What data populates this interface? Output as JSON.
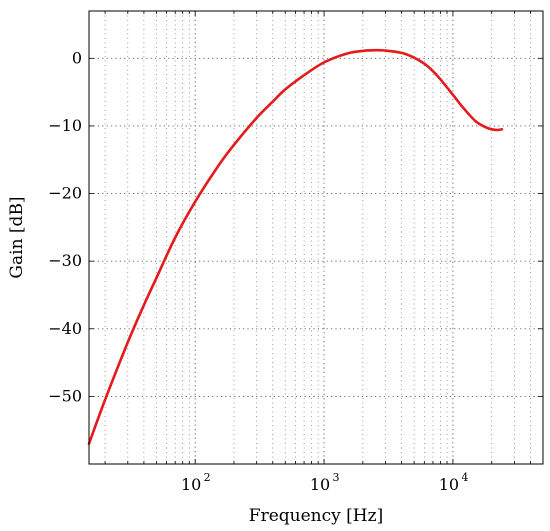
{
  "chart_data": {
    "type": "line",
    "title": "",
    "xlabel": "Frequency [Hz]",
    "ylabel": "Gain [dB]",
    "xscale": "log",
    "xlim": [
      15,
      50000
    ],
    "ylim": [
      -60,
      7
    ],
    "grid": true,
    "x_ticks": [
      100,
      1000,
      10000
    ],
    "x_tick_labels": [
      {
        "base": "10",
        "exp": "2"
      },
      {
        "base": "10",
        "exp": "3"
      },
      {
        "base": "10",
        "exp": "4"
      }
    ],
    "y_ticks": [
      0,
      -10,
      -20,
      -30,
      -40,
      -50
    ],
    "y_tick_labels": [
      "0",
      "−10",
      "−20",
      "−30",
      "−40",
      "−50"
    ],
    "series": [
      {
        "color": "#e41a1c",
        "x": [
          15,
          20,
          30,
          40,
          50,
          70,
          100,
          150,
          200,
          300,
          400,
          500,
          700,
          1000,
          1500,
          2000,
          2500,
          3000,
          4000,
          5000,
          6000,
          7000,
          8000,
          10000,
          12000,
          15000,
          18000,
          20000,
          22000,
          24000
        ],
        "y": [
          -57,
          -50.5,
          -42,
          -36.5,
          -32.5,
          -26.5,
          -21.2,
          -16,
          -12.8,
          -8.8,
          -6.4,
          -4.6,
          -2.5,
          -0.6,
          0.7,
          1.1,
          1.2,
          1.15,
          0.8,
          0.1,
          -0.8,
          -1.9,
          -3.1,
          -5.4,
          -7.3,
          -9.3,
          -10.2,
          -10.5,
          -10.6,
          -10.5
        ]
      }
    ]
  },
  "colors": {
    "curve": "#e41a1c",
    "axes": "#000000",
    "grid": "#666666"
  }
}
